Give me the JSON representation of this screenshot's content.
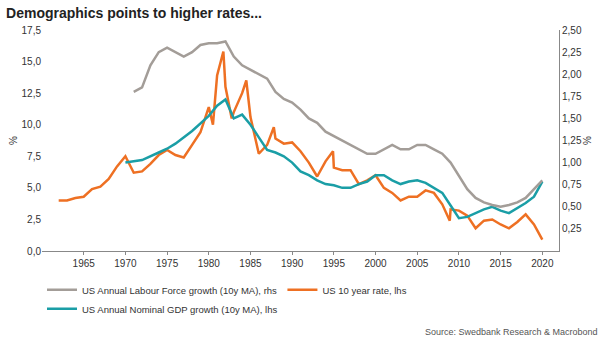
{
  "chart_data": {
    "type": "line",
    "title": "Demographics points to higher rates...",
    "ylabel": "%",
    "y2label": "%",
    "annotations": [
      "Source: Swedbank Research & Macrobond"
    ],
    "xlim": [
      1960,
      2022
    ],
    "xticks": [
      1965,
      1970,
      1975,
      1980,
      1985,
      1990,
      1995,
      2000,
      2005,
      2010,
      2015,
      2020
    ],
    "ylim": [
      0,
      17.5
    ],
    "yticks": [
      {
        "value": 0,
        "label": "0,0"
      },
      {
        "value": 2.5,
        "label": "2,5"
      },
      {
        "value": 5,
        "label": "5,0"
      },
      {
        "value": 7.5,
        "label": "7,5"
      },
      {
        "value": 10,
        "label": "10,0"
      },
      {
        "value": 12.5,
        "label": "12,5"
      },
      {
        "value": 15,
        "label": "15,0"
      },
      {
        "value": 17.5,
        "label": "17,5"
      }
    ],
    "y2lim": [
      0,
      2.5
    ],
    "y2ticks": [
      {
        "value": 0.25,
        "label": "0,25"
      },
      {
        "value": 0.5,
        "label": "0,50"
      },
      {
        "value": 0.75,
        "label": "0,75"
      },
      {
        "value": 1,
        "label": "1,00"
      },
      {
        "value": 1.25,
        "label": "1,25"
      },
      {
        "value": 1.5,
        "label": "1,50"
      },
      {
        "value": 1.75,
        "label": "1,75"
      },
      {
        "value": 2,
        "label": "2,00"
      },
      {
        "value": 2.25,
        "label": "2,25"
      },
      {
        "value": 2.5,
        "label": "2,50"
      }
    ],
    "grid": false,
    "legend": "bottom",
    "series": [
      {
        "name": "US Annual Labour Force growth (10y MA), rhs",
        "color": "#a39d98",
        "axis": "y2",
        "x": [
          1971,
          1972,
          1973,
          1974,
          1975,
          1976,
          1977,
          1978,
          1979,
          1980,
          1981,
          1982,
          1983,
          1984,
          1985,
          1986,
          1987,
          1988,
          1989,
          1990,
          1991,
          1992,
          1993,
          1994,
          1995,
          1996,
          1997,
          1998,
          1999,
          2000,
          2001,
          2002,
          2003,
          2004,
          2005,
          2006,
          2007,
          2008,
          2009,
          2010,
          2011,
          2012,
          2013,
          2014,
          2015,
          2016,
          2017,
          2018,
          2019,
          2020
        ],
        "values": [
          1.8,
          1.85,
          2.1,
          2.25,
          2.3,
          2.25,
          2.2,
          2.25,
          2.33,
          2.35,
          2.35,
          2.37,
          2.2,
          2.1,
          2.05,
          2.0,
          1.95,
          1.8,
          1.72,
          1.68,
          1.6,
          1.5,
          1.45,
          1.35,
          1.3,
          1.25,
          1.2,
          1.15,
          1.1,
          1.1,
          1.15,
          1.2,
          1.15,
          1.15,
          1.2,
          1.2,
          1.15,
          1.1,
          1.0,
          0.85,
          0.7,
          0.6,
          0.55,
          0.52,
          0.5,
          0.52,
          0.55,
          0.6,
          0.7,
          0.8
        ]
      },
      {
        "name": "US 10 year rate, lhs",
        "color": "#ee7023",
        "axis": "y",
        "x": [
          1962,
          1963,
          1964,
          1965,
          1966,
          1967,
          1968,
          1969,
          1970,
          1971,
          1972,
          1973,
          1974,
          1975,
          1976,
          1977,
          1978,
          1979,
          1980,
          1980.5,
          1981,
          1981.75,
          1982,
          1982.75,
          1983,
          1984,
          1984.5,
          1985,
          1986,
          1987,
          1987.8,
          1988,
          1989,
          1990,
          1991,
          1992,
          1993,
          1994,
          1994.9,
          1995,
          1996,
          1997,
          1998,
          1999,
          2000,
          2001,
          2002,
          2003,
          2004,
          2005,
          2006,
          2007,
          2008,
          2008.9,
          2009,
          2010,
          2011,
          2012,
          2013,
          2014,
          2015,
          2016,
          2017,
          2018,
          2019,
          2020
        ],
        "values": [
          4.0,
          4.0,
          4.2,
          4.3,
          4.9,
          5.1,
          5.7,
          6.7,
          7.5,
          6.2,
          6.3,
          6.9,
          7.6,
          8.0,
          7.6,
          7.4,
          8.4,
          9.4,
          11.4,
          10.0,
          13.9,
          15.8,
          13.0,
          10.5,
          11.0,
          12.5,
          13.5,
          10.6,
          7.7,
          8.4,
          9.8,
          8.9,
          8.5,
          8.6,
          7.9,
          7.0,
          5.9,
          7.1,
          7.9,
          6.6,
          6.4,
          6.4,
          5.3,
          5.6,
          6.0,
          5.0,
          4.6,
          4.0,
          4.3,
          4.3,
          4.8,
          4.6,
          3.7,
          2.4,
          3.3,
          3.2,
          2.8,
          1.8,
          2.4,
          2.5,
          2.1,
          1.8,
          2.3,
          2.9,
          2.1,
          0.9
        ]
      },
      {
        "name": "US Annual Nominal GDP growth (10y MA), lhs",
        "color": "#1a9ea6",
        "axis": "y",
        "x": [
          1970,
          1972,
          1974,
          1975,
          1976,
          1978,
          1980,
          1981,
          1982,
          1983,
          1984,
          1985,
          1986,
          1987,
          1988,
          1989,
          1990,
          1991,
          1992,
          1993,
          1994,
          1995,
          1996,
          1997,
          1998,
          1999,
          2000,
          2001,
          2002,
          2003,
          2004,
          2005,
          2006,
          2007,
          2008,
          2009,
          2010,
          2011,
          2012,
          2013,
          2014,
          2015,
          2016,
          2017,
          2018,
          2019,
          2020
        ],
        "values": [
          7.0,
          7.2,
          7.8,
          8.1,
          8.5,
          9.5,
          10.7,
          11.5,
          12.0,
          10.5,
          10.8,
          10.0,
          9.0,
          8.0,
          7.8,
          7.5,
          7.0,
          6.3,
          6.0,
          5.6,
          5.3,
          5.2,
          5.0,
          5.0,
          5.3,
          5.5,
          6.0,
          6.0,
          5.6,
          5.3,
          5.5,
          5.6,
          5.4,
          5.0,
          4.6,
          3.6,
          2.6,
          2.7,
          3.0,
          3.3,
          3.5,
          3.2,
          3.0,
          3.4,
          3.8,
          4.3,
          5.5
        ]
      }
    ]
  }
}
